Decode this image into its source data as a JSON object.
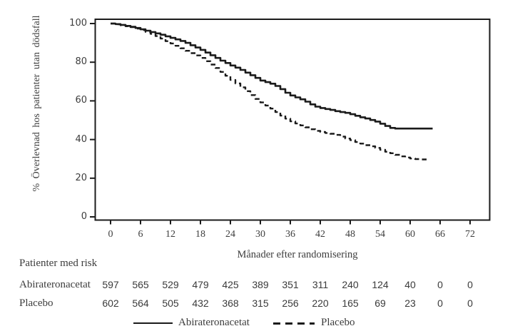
{
  "figure": {
    "y_axis_label": "% Överlevnad hos patienter utan dödsfall",
    "x_axis_label": "Månader efter randomisering",
    "risk_table": {
      "title": "Patienter med risk",
      "months": [
        0,
        6,
        12,
        18,
        24,
        30,
        36,
        42,
        48,
        54,
        60,
        66,
        72
      ],
      "rows": [
        {
          "label": "Abirateronacetat",
          "counts": [
            597,
            565,
            529,
            479,
            425,
            389,
            351,
            311,
            240,
            124,
            40,
            0,
            0
          ]
        },
        {
          "label": "Placebo",
          "counts": [
            602,
            564,
            505,
            432,
            368,
            315,
            256,
            220,
            165,
            69,
            23,
            0,
            0
          ]
        }
      ]
    },
    "legend": [
      {
        "label": "Abirateronacetat",
        "style": "solid"
      },
      {
        "label": "Placebo",
        "style": "dashed"
      }
    ]
  },
  "chart_data": {
    "type": "line",
    "subtype": "kaplan-meier-step",
    "title": "",
    "xlabel": "Månader efter randomisering",
    "ylabel": "% Överlevnad hos patienter utan dödsfall",
    "xlim": [
      0,
      76
    ],
    "ylim": [
      0,
      100
    ],
    "x_ticks": [
      0,
      6,
      12,
      18,
      24,
      30,
      36,
      42,
      48,
      54,
      60,
      66,
      72
    ],
    "y_ticks": [
      0,
      20,
      40,
      60,
      80,
      100
    ],
    "grid": false,
    "legend_position": "bottom",
    "line_color": "#1b1b1b",
    "series": [
      {
        "name": "Abirateronacetat",
        "style": "solid",
        "points": [
          [
            0,
            100
          ],
          [
            1,
            99.7
          ],
          [
            2,
            99.3
          ],
          [
            3,
            98.8
          ],
          [
            4,
            98.3
          ],
          [
            5,
            97.7
          ],
          [
            6,
            97
          ],
          [
            7,
            96.3
          ],
          [
            8,
            95.6
          ],
          [
            9,
            94.9
          ],
          [
            10,
            94.2
          ],
          [
            11,
            93.4
          ],
          [
            12,
            92.6
          ],
          [
            13,
            91.8
          ],
          [
            14,
            91
          ],
          [
            15,
            90
          ],
          [
            16,
            88.8
          ],
          [
            17,
            87.6
          ],
          [
            18,
            86.4
          ],
          [
            19,
            85
          ],
          [
            20,
            83.6
          ],
          [
            21,
            82.2
          ],
          [
            22,
            80.8
          ],
          [
            23,
            79.6
          ],
          [
            24,
            78.3
          ],
          [
            25,
            77.2
          ],
          [
            26,
            76
          ],
          [
            27,
            74.6
          ],
          [
            28,
            73.3
          ],
          [
            29,
            71.9
          ],
          [
            30,
            70.5
          ],
          [
            31,
            69.7
          ],
          [
            32,
            68.9
          ],
          [
            33,
            67.7
          ],
          [
            34,
            66.1
          ],
          [
            35,
            64.2
          ],
          [
            36,
            62.8
          ],
          [
            37,
            61.8
          ],
          [
            38,
            60.8
          ],
          [
            39,
            59.6
          ],
          [
            40,
            58.2
          ],
          [
            41,
            57
          ],
          [
            42,
            56.3
          ],
          [
            43,
            55.8
          ],
          [
            44,
            55.3
          ],
          [
            45,
            54.7
          ],
          [
            46,
            54.2
          ],
          [
            47,
            53.8
          ],
          [
            48,
            53.1
          ],
          [
            49,
            52.3
          ],
          [
            50,
            51.5
          ],
          [
            51,
            50.9
          ],
          [
            52,
            50.1
          ],
          [
            53,
            49.3
          ],
          [
            54,
            48.2
          ],
          [
            55,
            47
          ],
          [
            56,
            46
          ],
          [
            57,
            45.7
          ],
          [
            64.5,
            45.7
          ]
        ]
      },
      {
        "name": "Placebo",
        "style": "dashed",
        "points": [
          [
            0,
            100
          ],
          [
            1,
            99.6
          ],
          [
            2,
            99.1
          ],
          [
            3,
            98.6
          ],
          [
            4,
            98.1
          ],
          [
            5,
            97.4
          ],
          [
            6,
            96.6
          ],
          [
            7,
            95.7
          ],
          [
            8,
            94.7
          ],
          [
            9,
            93.5
          ],
          [
            10,
            92.2
          ],
          [
            11,
            90.9
          ],
          [
            12,
            89.7
          ],
          [
            13,
            88.5
          ],
          [
            14,
            87.2
          ],
          [
            15,
            85.9
          ],
          [
            16,
            84.7
          ],
          [
            17,
            83.5
          ],
          [
            18,
            82.2
          ],
          [
            19,
            80.5
          ],
          [
            20,
            78.8
          ],
          [
            21,
            77
          ],
          [
            22,
            75
          ],
          [
            23,
            73
          ],
          [
            24,
            70.8
          ],
          [
            25,
            69
          ],
          [
            26,
            67
          ],
          [
            27,
            65
          ],
          [
            28,
            63
          ],
          [
            29,
            61
          ],
          [
            30,
            59.2
          ],
          [
            31,
            57.6
          ],
          [
            32,
            56
          ],
          [
            33,
            54.2
          ],
          [
            34,
            52.4
          ],
          [
            35,
            50.8
          ],
          [
            36,
            49.4
          ],
          [
            37,
            48.3
          ],
          [
            38,
            47.3
          ],
          [
            39,
            46.3
          ],
          [
            40,
            45.3
          ],
          [
            41,
            44.5
          ],
          [
            42,
            43.9
          ],
          [
            43,
            43.4
          ],
          [
            44,
            43
          ],
          [
            45,
            42.4
          ],
          [
            46,
            41.5
          ],
          [
            47,
            40.5
          ],
          [
            48,
            39.7
          ],
          [
            49,
            38.7
          ],
          [
            50,
            37.9
          ],
          [
            51,
            37.1
          ],
          [
            52,
            36.5
          ],
          [
            53,
            35.7
          ],
          [
            54,
            34.7
          ],
          [
            55,
            33.7
          ],
          [
            56,
            32.9
          ],
          [
            57,
            32.1
          ],
          [
            58,
            31.3
          ],
          [
            59,
            30.7
          ],
          [
            60,
            30.2
          ],
          [
            61,
            29.9
          ],
          [
            62,
            29.7
          ],
          [
            63.5,
            29.6
          ]
        ]
      }
    ]
  },
  "colors": {
    "background": "#ffffff",
    "line": "#1b1b1b",
    "text": "#3c3c3c"
  }
}
